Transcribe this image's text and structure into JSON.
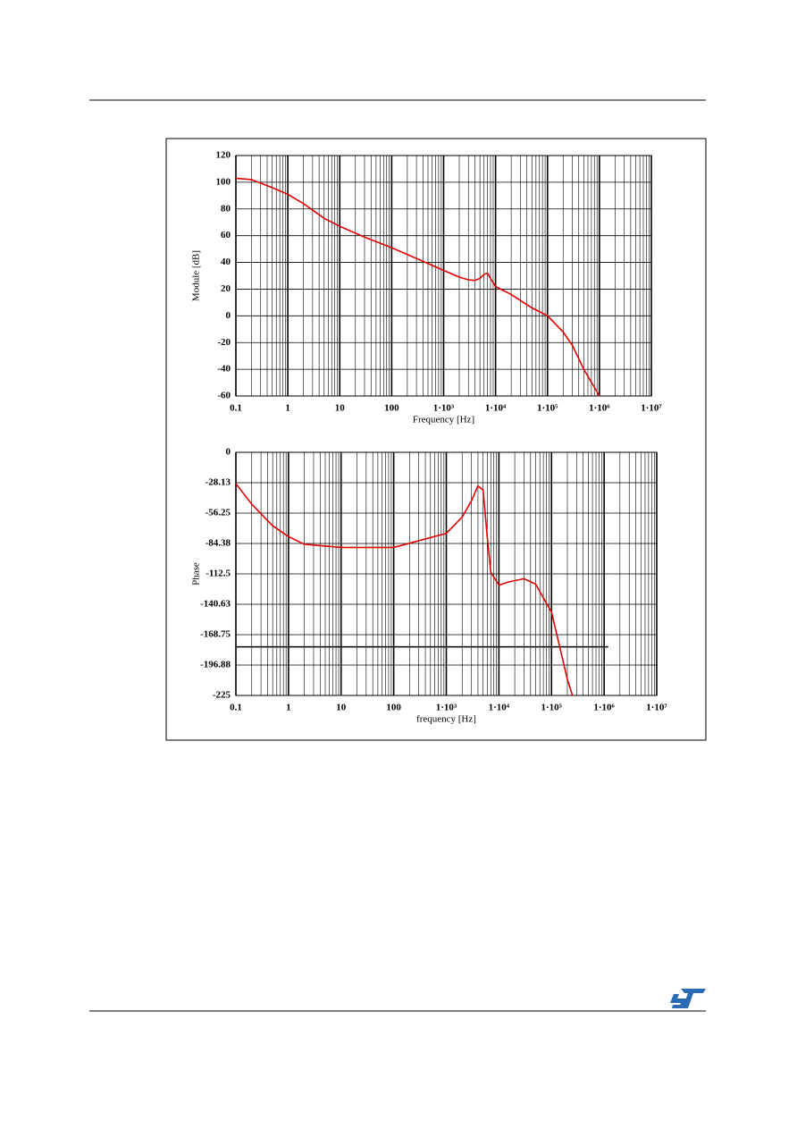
{
  "chart_data": [
    {
      "type": "line",
      "x_label": "Frequency [Hz]",
      "y_label": "Module [dB]",
      "xscale": "log",
      "grid": true,
      "xlim": [
        0.1,
        10000000
      ],
      "ylim": [
        -60,
        120
      ],
      "xticks": [
        0.1,
        1,
        10,
        100,
        {
          "value": 1000,
          "label": "1·10³"
        },
        {
          "value": 10000,
          "label": "1·10⁴"
        },
        {
          "value": 100000,
          "label": "1·10⁵"
        },
        {
          "value": 1000000,
          "label": "1·10⁶"
        },
        {
          "value": 10000000,
          "label": "1·10⁷"
        }
      ],
      "yticks": [
        -60,
        -40,
        -20,
        0,
        20,
        40,
        60,
        80,
        100,
        120
      ],
      "x": [
        0.1,
        0.2,
        0.5,
        1,
        2,
        5,
        10,
        30,
        100,
        300,
        1000,
        2000,
        3000,
        4000,
        5000,
        6000,
        7000,
        8000,
        10000,
        20000,
        50000,
        100000,
        200000,
        300000,
        500000,
        1000000
      ],
      "series": [
        {
          "color": "#e00000",
          "values": [
            103,
            102,
            96,
            91,
            84,
            73,
            67,
            59,
            51,
            43,
            34,
            29,
            27,
            26.5,
            28,
            31,
            32,
            28,
            22,
            16,
            6,
            0,
            -12,
            -22,
            -40,
            -60
          ]
        }
      ]
    },
    {
      "type": "line",
      "x_label": "frequency [Hz]",
      "y_label": "Phase",
      "xscale": "log",
      "grid": true,
      "xlim": [
        0.1,
        10000000
      ],
      "ylim": [
        -225,
        0
      ],
      "xticks": [
        0.1,
        1,
        10,
        100,
        {
          "value": 1000,
          "label": "1·10³"
        },
        {
          "value": 10000,
          "label": "1·10⁴"
        },
        {
          "value": 100000,
          "label": "1·10⁵"
        },
        {
          "value": 1000000,
          "label": "1·10⁶"
        },
        {
          "value": 10000000,
          "label": "1·10⁷"
        }
      ],
      "yticks": [
        -225,
        -196.88,
        -168.75,
        -140.63,
        -112.5,
        -84.38,
        -56.25,
        -28.13,
        0
      ],
      "x": [
        0.1,
        0.2,
        0.5,
        1,
        2,
        10,
        100,
        1000,
        2000,
        3000,
        4000,
        5000,
        6000,
        7000,
        10000,
        15000,
        30000,
        50000,
        100000,
        200000,
        250000
      ],
      "series": [
        {
          "color": "#e00000",
          "values": [
            -29,
            -48,
            -68,
            -78,
            -85,
            -88,
            -88,
            -75,
            -60,
            -45,
            -31,
            -35,
            -78,
            -111,
            -123,
            -120,
            -117,
            -122,
            -148,
            -210,
            -225
          ]
        }
      ],
      "reference_line": {
        "y": -180,
        "x_end": 1200000
      }
    }
  ]
}
